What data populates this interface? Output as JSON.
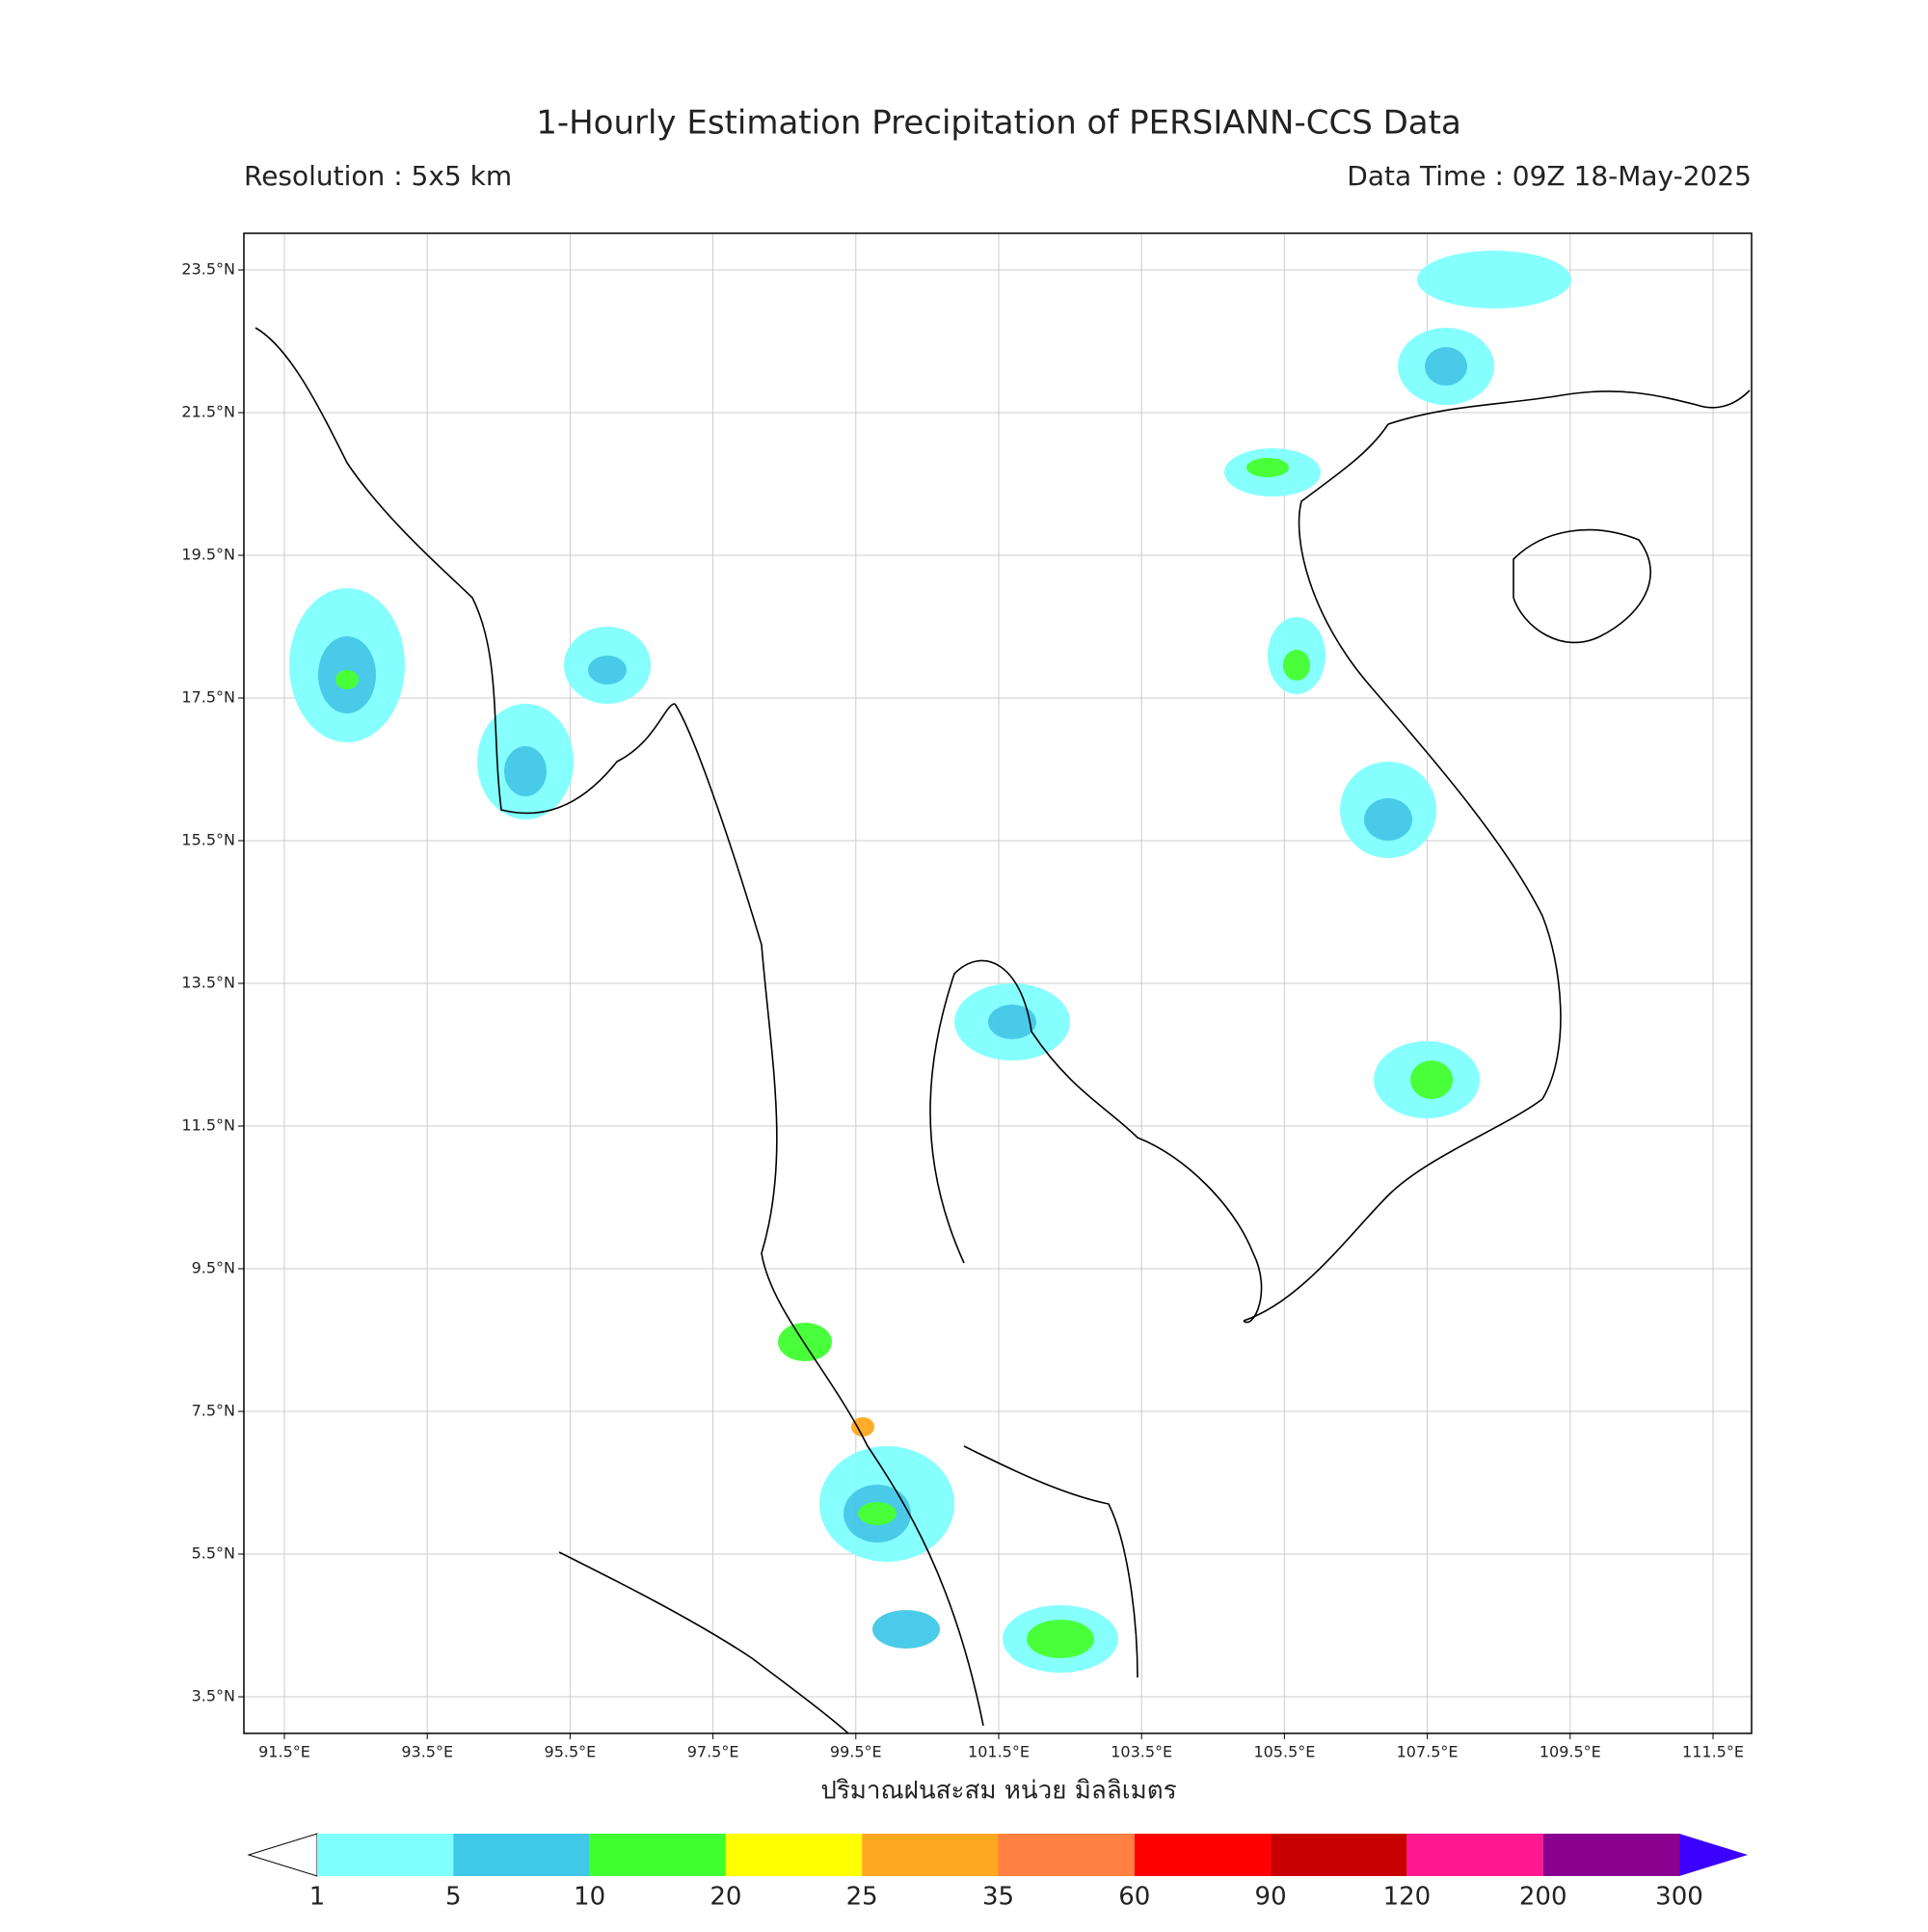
{
  "header": {
    "title": "1-Hourly Estimation Precipitation of PERSIANN-CCS Data",
    "resolution": "Resolution : 5x5 km",
    "data_time": "Data Time : 09Z 18-May-2025"
  },
  "map": {
    "lat_ticks": [
      "23.5°N",
      "21.5°N",
      "19.5°N",
      "17.5°N",
      "15.5°N",
      "13.5°N",
      "11.5°N",
      "9.5°N",
      "7.5°N",
      "5.5°N",
      "3.5°N"
    ],
    "lon_ticks": [
      "91.5°E",
      "93.5°E",
      "95.5°E",
      "97.5°E",
      "99.5°E",
      "101.5°E",
      "103.5°E",
      "105.5°E",
      "107.5°E",
      "109.5°E",
      "111.5°E"
    ],
    "xlabel": "ปริมาณฝนสะสม หน่วย มิลลิเมตร"
  },
  "colorbar": {
    "levels": [
      1,
      5,
      10,
      20,
      25,
      35,
      60,
      90,
      120,
      200,
      300
    ],
    "colors": [
      "#80ffff",
      "#40c8e8",
      "#40ff30",
      "#ffff00",
      "#ffa820",
      "#ff8040",
      "#ff0000",
      "#c80000",
      "#ff1890",
      "#8c0090",
      "#3c00ff"
    ]
  }
}
